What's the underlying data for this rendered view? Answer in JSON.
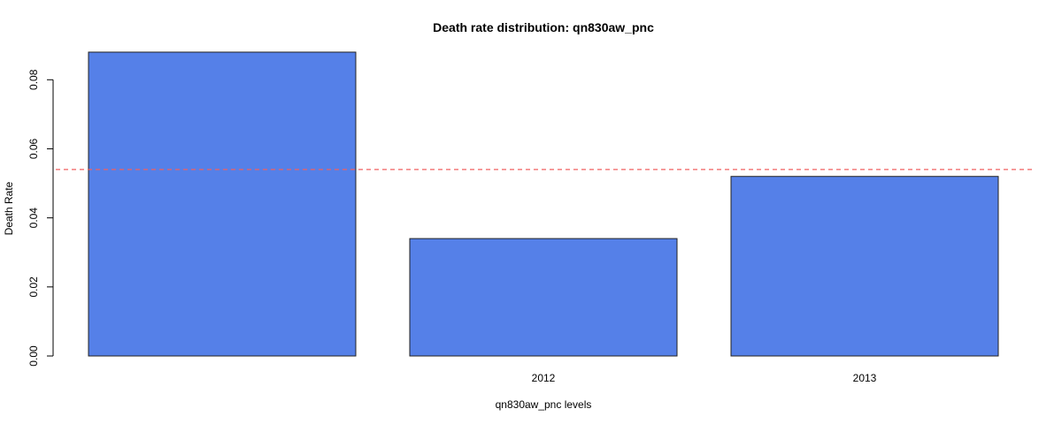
{
  "chart_data": {
    "type": "bar",
    "title": "Death rate distribution: qn830aw_pnc",
    "xlabel": "qn830aw_pnc levels",
    "ylabel": "Death Rate",
    "categories": [
      "",
      "2012",
      "2013"
    ],
    "values": [
      0.088,
      0.034,
      0.052
    ],
    "ylim": [
      0,
      0.088
    ],
    "yticks": [
      "0.00",
      "0.02",
      "0.04",
      "0.06",
      "0.08"
    ],
    "reference_line": 0.054,
    "grid": false,
    "colors": {
      "bar_fill": "#5580E8",
      "bar_stroke": "#222222",
      "reference_line": "#F06060",
      "axis": "#000000"
    }
  }
}
